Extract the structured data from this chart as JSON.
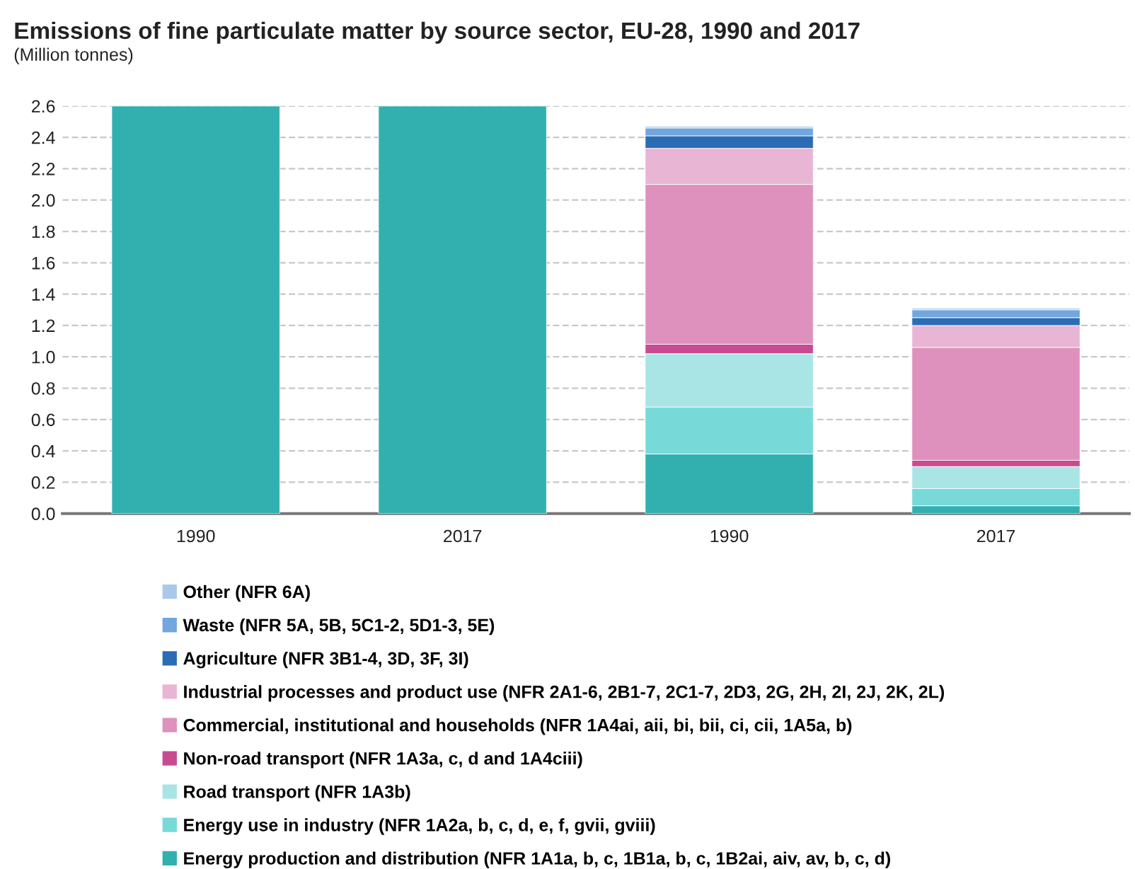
{
  "chart_data": {
    "type": "bar",
    "stacked": true,
    "title": "Emissions of fine particulate matter by source sector, EU-28, 1990 and 2017",
    "subtitle": "(Million tonnes)",
    "categories": [
      "1990",
      "2017",
      "1990",
      "2017"
    ],
    "series": [
      {
        "name": "Energy production and distribution (NFR 1A1a, b, c, 1B1a, b, c, 1B2ai, aiv, av, b, c, d)",
        "color": "#32b0b0",
        "values": [
          2.6,
          2.6,
          0.38,
          0.05
        ]
      },
      {
        "name": "Energy use in industry (NFR 1A2a, b, c, d, e, f, gvii, gviii)",
        "color": "#78d9d9",
        "values": [
          null,
          null,
          0.3,
          0.11
        ]
      },
      {
        "name": "Road transport (NFR 1A3b)",
        "color": "#a9e5e5",
        "values": [
          null,
          null,
          0.34,
          0.14
        ]
      },
      {
        "name": "Non-road transport (NFR 1A3a, c, d and 1A4ciii)",
        "color": "#c84b92",
        "values": [
          null,
          null,
          0.06,
          0.04
        ]
      },
      {
        "name": "Commercial, institutional and households (NFR 1A4ai, aii, bi, bii, ci, cii, 1A5a, b)",
        "color": "#de91bd",
        "values": [
          null,
          null,
          1.02,
          0.72
        ]
      },
      {
        "name": "Industrial processes and product use (NFR 2A1-6, 2B1-7, 2C1-7, 2D3, 2G, 2H, 2I, 2J, 2K, 2L)",
        "color": "#e9b5d4",
        "values": [
          null,
          null,
          0.23,
          0.14
        ]
      },
      {
        "name": "Agriculture (NFR 3B1-4, 3D, 3F, 3I)",
        "color": "#2b6cb5",
        "values": [
          null,
          null,
          0.08,
          0.05
        ]
      },
      {
        "name": "Waste (NFR 5A, 5B, 5C1-2, 5D1-3, 5E)",
        "color": "#72a6df",
        "values": [
          null,
          null,
          0.05,
          0.05
        ]
      },
      {
        "name": "Other (NFR 6A)",
        "color": "#a9c9ec",
        "values": [
          null,
          null,
          0.01,
          0.01
        ]
      }
    ],
    "ylim": [
      0,
      2.6
    ],
    "yticks": [
      {
        "value": 0,
        "label": "0.0"
      },
      0.2,
      0.4,
      0.6,
      0.8,
      {
        "value": 1.0,
        "label": "1.0"
      },
      1.2,
      1.4,
      1.6,
      1.8,
      {
        "value": 2.0,
        "label": "2.0"
      },
      2.2,
      2.4,
      2.6
    ],
    "grid": "y",
    "legend": "bottom"
  }
}
